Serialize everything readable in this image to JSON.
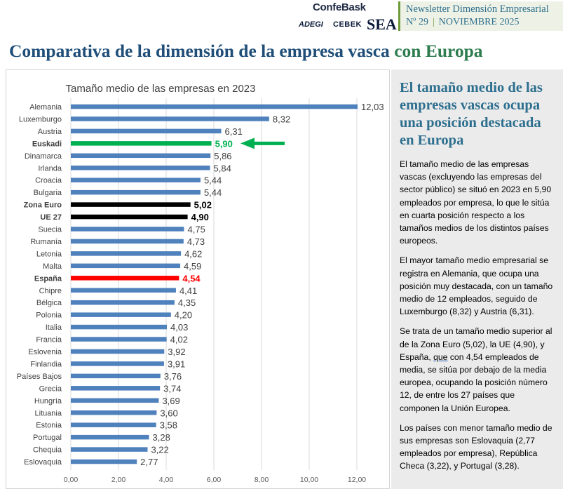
{
  "header": {
    "logo_confebask": "ConfeBask",
    "logo_adegi": "ADEGI",
    "logo_cebek": "CEBEK",
    "logo_sea": "SEA",
    "newsletter_title": "Newsletter Dimensión Empresarial",
    "issue": "Nº 29",
    "date": "NOVIEMBRE 2025"
  },
  "title": {
    "part1": "Comparativa de la dimensión de la empresa vasca ",
    "part2": "con Europa"
  },
  "side": {
    "heading": "El tamaño medio de las empresas vascas ocupa una posición destacada en Europa",
    "p1": "El tamaño medio de las empresas vascas (excluyendo las empresas del sector público) se situó en 2023 en 5,90 empleados por empresa, lo que le sitúa en cuarta posición respecto a los tamaños medios de los distintos países europeos.",
    "p2": "El mayor tamaño medio empresarial se registra en Alemania, que ocupa una posición muy destacada, con un tamaño medio de 12 empleados, seguido de Luxemburgo (8,32) y Austria (6,31).",
    "p3a": "Se trata de un tamaño medio superior al de la Zona Euro (5,02), la UE (4,90), y España, ",
    "p3u": "que",
    "p3b": " con 4,54 empleados de media, se sitúa por debajo de la media europea, ocupando la  posición número 12, de entre los 27 países que componen la Unión Europea.",
    "p4": "Los países con menor tamaño medio de sus empresas son Eslovaquia (2,77 empleados por empresa), República Checa (3,22), y Portugal (3,28)."
  },
  "chart_data": {
    "type": "bar",
    "orientation": "horizontal",
    "title": "Tamaño medio de las empresas en 2023",
    "xlim": [
      0,
      12
    ],
    "xticks": [
      "0,00",
      "2,00",
      "4,00",
      "6,00",
      "8,00",
      "10,00",
      "12,00"
    ],
    "xtick_values": [
      0,
      2,
      4,
      6,
      8,
      10,
      12
    ],
    "grid": true,
    "categories": [
      "Alemania",
      "Luxemburgo",
      "Austria",
      "Euskadi",
      "Dinamarca",
      "Irlanda",
      "Croacia",
      "Bulgaria",
      "Zona Euro",
      "UE 27",
      "Suecia",
      "Rumanía",
      "Letonia",
      "Malta",
      "España",
      "Chipre",
      "Bélgica",
      "Polonia",
      "Italia",
      "Francia",
      "Eslovenia",
      "Finlandia",
      "Países Bajos",
      "Grecia",
      "Hungría",
      "Lituania",
      "Estonia",
      "Portugal",
      "Chequia",
      "Eslovaquia"
    ],
    "values": [
      12.03,
      8.32,
      6.31,
      5.9,
      5.86,
      5.84,
      5.44,
      5.44,
      5.02,
      4.9,
      4.75,
      4.73,
      4.62,
      4.59,
      4.54,
      4.41,
      4.35,
      4.2,
      4.03,
      4.02,
      3.92,
      3.91,
      3.76,
      3.74,
      3.69,
      3.6,
      3.58,
      3.28,
      3.22,
      2.77
    ],
    "labels": [
      "12,03",
      "8,32",
      "6,31",
      "5,90",
      "5,86",
      "5,84",
      "5,44",
      "5,44",
      "5,02",
      "4,90",
      "4,75",
      "4,73",
      "4,62",
      "4,59",
      "4,54",
      "4,41",
      "4,35",
      "4,20",
      "4,03",
      "4,02",
      "3,92",
      "3,91",
      "3,76",
      "3,74",
      "3,69",
      "3,60",
      "3,58",
      "3,28",
      "3,22",
      "2,77"
    ],
    "highlight": {
      "Euskadi": "#00b050",
      "Zona Euro": "#000000",
      "UE 27": "#000000",
      "España": "#ff0000"
    },
    "bar_color": "#4f81bd",
    "annotation": {
      "type": "arrow",
      "points_to": "Euskadi",
      "color": "#00b050"
    }
  }
}
